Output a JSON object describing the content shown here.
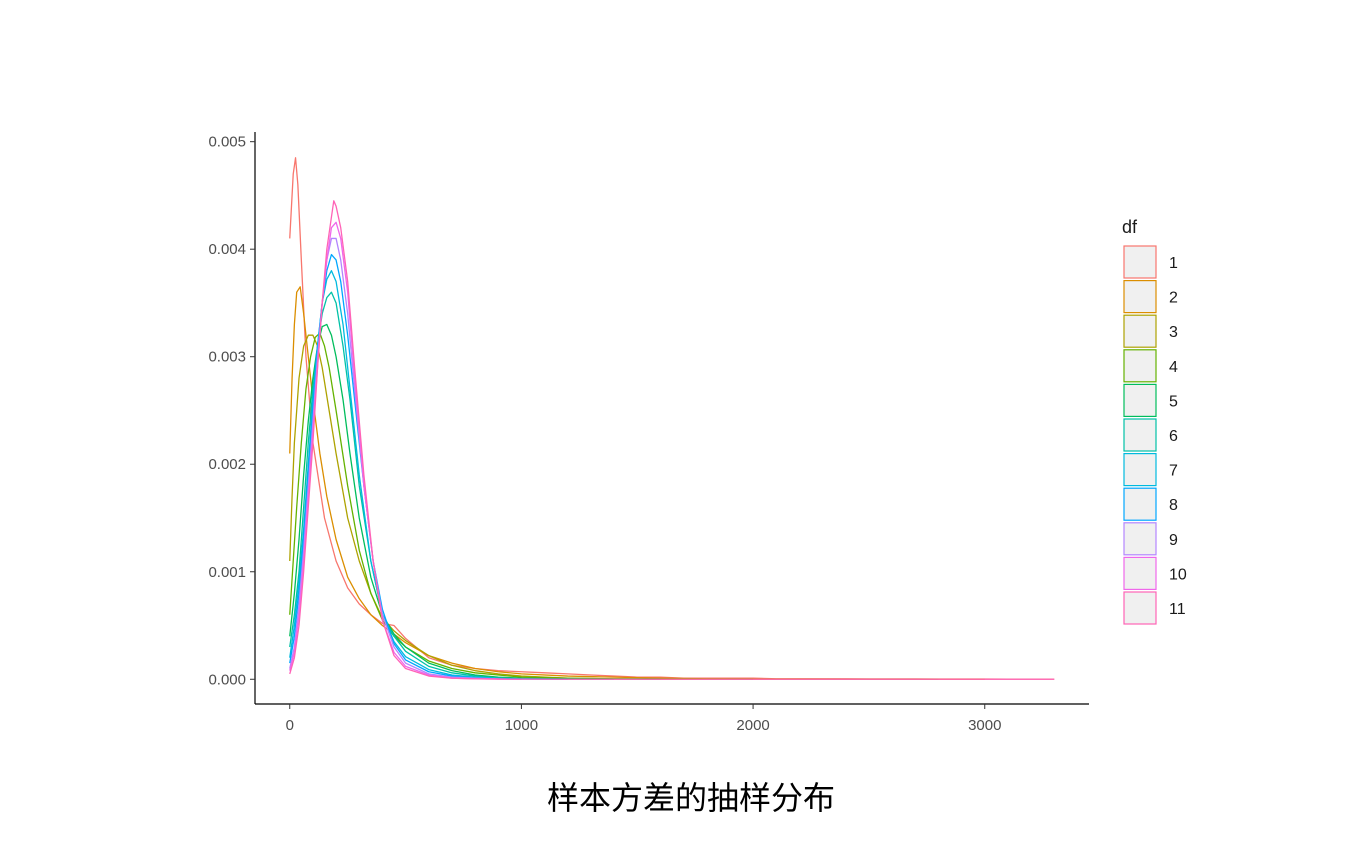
{
  "chart_data": {
    "type": "line",
    "title": "",
    "caption": "样本方差的抽样分布",
    "xlabel": "",
    "ylabel": "",
    "xlim": [
      -150,
      3450
    ],
    "ylim": [
      -0.00023,
      0.00509
    ],
    "x_ticks": [
      0,
      1000,
      2000,
      3000
    ],
    "x_tick_labels": [
      "0",
      "1000",
      "2000",
      "3000"
    ],
    "y_ticks": [
      0,
      0.001,
      0.002,
      0.003,
      0.004,
      0.005
    ],
    "y_tick_labels": [
      "0.000",
      "0.001",
      "0.002",
      "0.003",
      "0.004",
      "0.005"
    ],
    "grid": false,
    "legend": {
      "title": "df",
      "position": "right"
    },
    "series": [
      {
        "name": "1",
        "color": "#F8766D",
        "x": [
          0,
          15,
          25,
          35,
          50,
          70,
          100,
          150,
          200,
          250,
          300,
          350,
          400,
          450,
          500,
          600,
          700,
          800,
          900,
          1000,
          1100,
          1200,
          1300,
          1400,
          1500,
          1600,
          1700,
          1800,
          1900,
          2000,
          2100,
          2200,
          2300,
          2400,
          2500,
          2600,
          2700,
          2800,
          2900,
          3000,
          3100,
          3200,
          3300
        ],
        "y": [
          0.0041,
          0.0047,
          0.00485,
          0.0046,
          0.0039,
          0.003,
          0.0022,
          0.0015,
          0.0011,
          0.00085,
          0.0007,
          0.0006,
          0.00052,
          0.0005,
          0.00038,
          0.0002,
          0.00013,
          0.0001,
          8e-05,
          7e-05,
          6e-05,
          5e-05,
          4e-05,
          3e-05,
          2e-05,
          2e-05,
          1e-05,
          1e-05,
          1e-05,
          1e-05,
          5e-06,
          5e-06,
          5e-06,
          5e-06,
          3e-06,
          3e-06,
          3e-06,
          2e-06,
          2e-06,
          2e-06,
          1e-06,
          1e-06,
          1e-06
        ]
      },
      {
        "name": "2",
        "color": "#DB8E00",
        "x": [
          0,
          10,
          20,
          30,
          45,
          60,
          80,
          100,
          130,
          160,
          200,
          250,
          300,
          350,
          400,
          450,
          500,
          600,
          700,
          800,
          900,
          1000,
          1200,
          1400,
          1600,
          1800,
          2000,
          2200,
          2400,
          2600,
          2800,
          3000
        ],
        "y": [
          0.0021,
          0.0028,
          0.0033,
          0.0036,
          0.00365,
          0.0034,
          0.003,
          0.0026,
          0.0021,
          0.0017,
          0.0013,
          0.00095,
          0.00075,
          0.0006,
          0.0005,
          0.00042,
          0.00034,
          0.00022,
          0.00015,
          0.0001,
          7e-05,
          5e-05,
          3e-05,
          2e-05,
          1e-05,
          5e-06,
          3e-06,
          2e-06,
          1e-06,
          1e-06,
          0,
          0
        ]
      },
      {
        "name": "3",
        "color": "#AEA200",
        "x": [
          0,
          10,
          20,
          40,
          60,
          80,
          100,
          120,
          140,
          170,
          200,
          250,
          300,
          350,
          400,
          450,
          500,
          600,
          700,
          800,
          900,
          1000,
          1200,
          1400,
          1600,
          1800,
          2000,
          2400,
          2800
        ],
        "y": [
          0.0011,
          0.0017,
          0.0022,
          0.0028,
          0.0031,
          0.0032,
          0.0032,
          0.0031,
          0.0029,
          0.0025,
          0.0021,
          0.0015,
          0.0011,
          0.0008,
          0.00057,
          0.00045,
          0.00036,
          0.00022,
          0.00013,
          8e-05,
          5e-05,
          3e-05,
          1e-05,
          5e-06,
          2e-06,
          1e-06,
          0,
          0,
          0
        ]
      },
      {
        "name": "4",
        "color": "#64B200",
        "x": [
          0,
          15,
          30,
          50,
          70,
          90,
          110,
          130,
          150,
          170,
          200,
          250,
          300,
          350,
          400,
          450,
          500,
          600,
          700,
          800,
          900,
          1000,
          1200,
          1400,
          1600,
          2000
        ],
        "y": [
          0.0006,
          0.0011,
          0.0016,
          0.0022,
          0.0027,
          0.003,
          0.00318,
          0.00322,
          0.0031,
          0.0029,
          0.0025,
          0.0018,
          0.0012,
          0.0008,
          0.00055,
          0.0004,
          0.0003,
          0.00017,
          0.0001,
          6e-05,
          4e-05,
          2e-05,
          1e-05,
          4e-06,
          2e-06,
          0
        ]
      },
      {
        "name": "5",
        "color": "#00BD5C",
        "x": [
          0,
          20,
          40,
          60,
          80,
          100,
          120,
          140,
          160,
          180,
          200,
          230,
          260,
          300,
          350,
          400,
          450,
          500,
          600,
          700,
          800,
          900,
          1000,
          1200,
          1400,
          1600
        ],
        "y": [
          0.0004,
          0.0008,
          0.0013,
          0.0019,
          0.0024,
          0.0028,
          0.0031,
          0.00328,
          0.0033,
          0.0032,
          0.003,
          0.0026,
          0.0021,
          0.0015,
          0.00095,
          0.0006,
          0.00042,
          0.0003,
          0.00015,
          8e-05,
          4e-05,
          2e-05,
          1e-05,
          3e-06,
          1e-06,
          0
        ]
      },
      {
        "name": "6",
        "color": "#00C1A7",
        "x": [
          0,
          20,
          40,
          60,
          80,
          100,
          120,
          140,
          160,
          180,
          200,
          230,
          260,
          300,
          350,
          400,
          450,
          500,
          600,
          700,
          800,
          900,
          1000,
          1200,
          1400
        ],
        "y": [
          0.0003,
          0.0006,
          0.001,
          0.0016,
          0.0022,
          0.0027,
          0.0031,
          0.0034,
          0.00355,
          0.0036,
          0.0035,
          0.0031,
          0.0026,
          0.0018,
          0.0011,
          0.0006,
          0.0004,
          0.00026,
          0.00012,
          6e-05,
          3e-05,
          1e-05,
          5e-06,
          1e-06,
          0
        ]
      },
      {
        "name": "7",
        "color": "#00BADE",
        "x": [
          0,
          20,
          40,
          60,
          80,
          100,
          120,
          140,
          160,
          180,
          200,
          230,
          260,
          300,
          350,
          400,
          450,
          500,
          600,
          700,
          800,
          900,
          1000,
          1200
        ],
        "y": [
          0.0002,
          0.0005,
          0.0009,
          0.0014,
          0.002,
          0.0026,
          0.0031,
          0.0035,
          0.00372,
          0.0038,
          0.0037,
          0.0033,
          0.0027,
          0.0019,
          0.0011,
          0.0006,
          0.00035,
          0.00021,
          9e-05,
          4e-05,
          2e-05,
          1e-05,
          4e-06,
          0
        ]
      },
      {
        "name": "8",
        "color": "#00A6FF",
        "x": [
          0,
          20,
          40,
          60,
          80,
          100,
          120,
          140,
          160,
          180,
          200,
          220,
          250,
          280,
          320,
          360,
          400,
          450,
          500,
          600,
          700,
          800,
          900,
          1000,
          1200
        ],
        "y": [
          0.00015,
          0.0004,
          0.0008,
          0.0013,
          0.0019,
          0.0025,
          0.0031,
          0.0035,
          0.0038,
          0.00395,
          0.0039,
          0.0037,
          0.0032,
          0.0026,
          0.0018,
          0.0011,
          0.00065,
          0.00033,
          0.00018,
          7e-05,
          3e-05,
          1e-05,
          5e-06,
          2e-06,
          0
        ]
      },
      {
        "name": "9",
        "color": "#B385FF",
        "x": [
          0,
          20,
          40,
          60,
          80,
          100,
          120,
          140,
          160,
          180,
          200,
          220,
          250,
          280,
          320,
          360,
          400,
          450,
          500,
          600,
          700,
          800,
          900,
          1000
        ],
        "y": [
          0.0001,
          0.0003,
          0.0007,
          0.0012,
          0.0018,
          0.0024,
          0.003,
          0.0035,
          0.0039,
          0.0041,
          0.0041,
          0.0039,
          0.0034,
          0.0027,
          0.0018,
          0.0011,
          0.0006,
          0.0003,
          0.00015,
          5e-05,
          2e-05,
          1e-05,
          3e-06,
          0
        ]
      },
      {
        "name": "10",
        "color": "#EF67EB",
        "x": [
          0,
          20,
          40,
          60,
          80,
          100,
          120,
          140,
          160,
          180,
          200,
          220,
          250,
          280,
          320,
          360,
          400,
          450,
          500,
          600,
          700,
          800,
          900,
          1000
        ],
        "y": [
          8e-05,
          0.00025,
          0.0006,
          0.0011,
          0.0017,
          0.0023,
          0.0029,
          0.0035,
          0.0039,
          0.0042,
          0.00425,
          0.0041,
          0.0036,
          0.0028,
          0.0018,
          0.0011,
          0.00055,
          0.00025,
          0.00012,
          4e-05,
          1e-05,
          5e-06,
          2e-06,
          0
        ]
      },
      {
        "name": "11",
        "color": "#FF63B6",
        "x": [
          0,
          20,
          40,
          60,
          80,
          100,
          120,
          140,
          160,
          180,
          190,
          200,
          220,
          250,
          280,
          320,
          360,
          400,
          450,
          500,
          600,
          700,
          800,
          900,
          1000,
          1200,
          1400,
          1600,
          1800,
          2000,
          2200,
          2400,
          2600,
          2800,
          3000,
          3200,
          3300
        ],
        "y": [
          5e-05,
          0.0002,
          0.0005,
          0.001,
          0.0016,
          0.0022,
          0.0029,
          0.0035,
          0.004,
          0.0043,
          0.00445,
          0.0044,
          0.0042,
          0.0037,
          0.0029,
          0.0019,
          0.0011,
          0.00055,
          0.00022,
          0.0001,
          3e-05,
          1e-05,
          4e-06,
          2e-06,
          1e-06,
          0,
          0,
          0,
          0,
          0,
          0,
          0,
          0,
          0,
          0,
          0,
          0
        ]
      }
    ]
  }
}
